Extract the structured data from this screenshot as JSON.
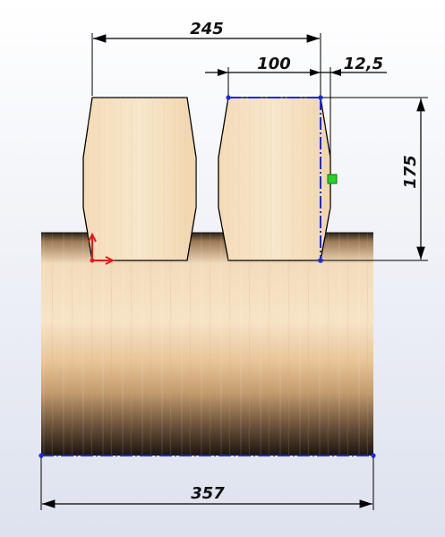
{
  "dimensions": {
    "overall_left_block_width": "245",
    "right_block_width": "100",
    "offset": "12,5",
    "height": "175",
    "base_width": "357"
  },
  "colors": {
    "background_top": "#ffffff",
    "background_bottom": "#dfe3ee",
    "wood_light": "#f6dfbf",
    "wood_mid": "#efcfa5",
    "wood_dark": "#2a1f17",
    "line": "#000000",
    "selection_blue": "#1f2bd6",
    "handle_green": "#2bd02b",
    "axis_red": "#e31a1a"
  }
}
